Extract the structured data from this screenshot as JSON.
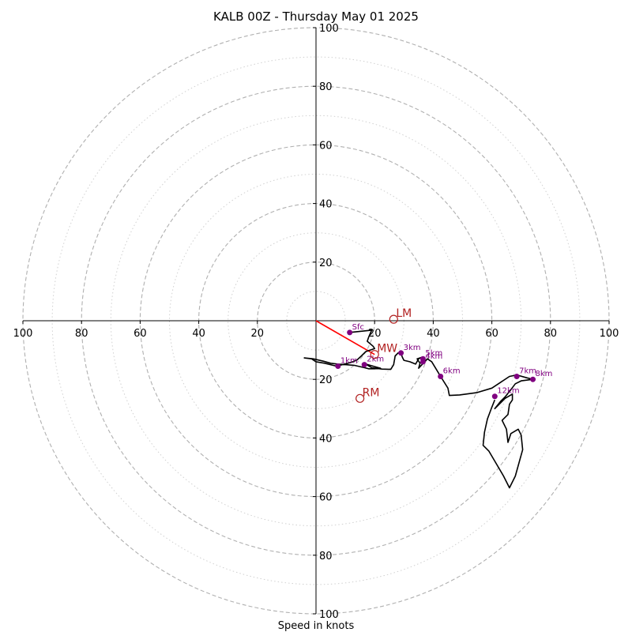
{
  "chart_data": {
    "type": "hodograph",
    "title": "KALB 00Z - Thursday May 01 2025",
    "xlabel": "Speed in knots",
    "range": [
      -100,
      100
    ],
    "major_rings": [
      20,
      40,
      60,
      80,
      100
    ],
    "minor_rings": [
      10,
      30,
      50,
      70,
      90
    ],
    "tick_labels": {
      "x": [
        "100",
        "80",
        "60",
        "40",
        "20",
        "20",
        "40",
        "60",
        "80",
        "100"
      ],
      "y": [
        "100",
        "80",
        "60",
        "40",
        "20",
        "20",
        "40",
        "60",
        "80",
        "100"
      ]
    },
    "trace": [
      [
        11.5,
        -4.0
      ],
      [
        19,
        -3.2
      ],
      [
        18,
        -5.5
      ],
      [
        17.5,
        -7.0
      ],
      [
        19.5,
        -8.7
      ],
      [
        20,
        -9.5
      ],
      [
        17,
        -10.5
      ],
      [
        15.5,
        -12.0
      ],
      [
        14,
        -13.4
      ],
      [
        12,
        -14.2
      ],
      [
        7,
        -15.5
      ],
      [
        3,
        -14.5
      ],
      [
        0,
        -14.0
      ],
      [
        -1.5,
        -13.0
      ],
      [
        -4,
        -12.7
      ],
      [
        -1,
        -13.0
      ],
      [
        2.5,
        -13.8
      ],
      [
        5,
        -14.5
      ],
      [
        7.5,
        -14.8
      ],
      [
        10,
        -15.0
      ],
      [
        13,
        -15.2
      ],
      [
        16.5,
        -16.0
      ],
      [
        18,
        -16.4
      ],
      [
        20,
        -16.4
      ],
      [
        22,
        -16.2
      ],
      [
        17,
        -14.8
      ],
      [
        16.5,
        -14.5
      ],
      [
        19,
        -16.0
      ],
      [
        22.5,
        -16.5
      ],
      [
        25.5,
        -16.6
      ],
      [
        26.5,
        -15.0
      ],
      [
        27,
        -12.0
      ],
      [
        28,
        -11.0
      ],
      [
        29,
        -11.2
      ],
      [
        29.5,
        -12.5
      ],
      [
        30,
        -13.5
      ],
      [
        32,
        -14.0
      ],
      [
        34,
        -14.8
      ],
      [
        35,
        -13.0
      ],
      [
        36,
        -12.5
      ],
      [
        34.5,
        -13.0
      ],
      [
        35.5,
        -14.5
      ],
      [
        35,
        -16.2
      ],
      [
        36.5,
        -14.6
      ],
      [
        38,
        -13.0
      ],
      [
        39.5,
        -14.0
      ],
      [
        41,
        -16.5
      ],
      [
        42.5,
        -19.0
      ],
      [
        45,
        -23.0
      ],
      [
        45.5,
        -25.5
      ],
      [
        49,
        -25.3
      ],
      [
        55,
        -24.5
      ],
      [
        60,
        -23.0
      ],
      [
        63,
        -21.0
      ],
      [
        66,
        -19.0
      ],
      [
        68.5,
        -18.5
      ],
      [
        72,
        -19.5
      ],
      [
        74,
        -20.0
      ],
      [
        70,
        -20.5
      ],
      [
        68,
        -21.5
      ],
      [
        66.5,
        -23.5
      ],
      [
        64.5,
        -26.0
      ],
      [
        63,
        -27.5
      ],
      [
        61,
        -30.0
      ],
      [
        62.5,
        -28.5
      ],
      [
        64.5,
        -26.5
      ],
      [
        67,
        -25.0
      ],
      [
        67,
        -27.0
      ],
      [
        66,
        -28.5
      ],
      [
        65.5,
        -32.0
      ],
      [
        63.5,
        -34.0
      ],
      [
        65,
        -37.0
      ],
      [
        65.5,
        -41.5
      ],
      [
        66.5,
        -38.5
      ],
      [
        69,
        -37.0
      ],
      [
        70,
        -39.0
      ],
      [
        70.5,
        -44.0
      ],
      [
        68,
        -53.0
      ],
      [
        66,
        -57.0
      ],
      [
        64,
        -53.0
      ],
      [
        59,
        -44.5
      ],
      [
        57,
        -42.5
      ],
      [
        57.5,
        -38.0
      ],
      [
        58.5,
        -33.5
      ],
      [
        60,
        -29.5
      ],
      [
        61,
        -27.0
      ]
    ],
    "height_labels": [
      {
        "label": "Sfc",
        "u": 11.5,
        "v": -4.0
      },
      {
        "label": "1km",
        "u": 7.5,
        "v": -15.5
      },
      {
        "label": "2km",
        "u": 16.5,
        "v": -15.0
      },
      {
        "label": "3km",
        "u": 29,
        "v": -11.0
      },
      {
        "label": "4km",
        "u": 36.5,
        "v": -14.0
      },
      {
        "label": "5km",
        "u": 36.5,
        "v": -13.0
      },
      {
        "label": "6km",
        "u": 42.5,
        "v": -19.0
      },
      {
        "label": "7km",
        "u": 68.5,
        "v": -19.0
      },
      {
        "label": "8km",
        "u": 74,
        "v": -20.0
      },
      {
        "label": "12km",
        "u": 61,
        "v": -25.8
      }
    ],
    "motion_markers": [
      {
        "label": "LM",
        "u": 26.5,
        "v": 0.5
      },
      {
        "label": "MW",
        "u": 20,
        "v": -11.5
      },
      {
        "label": "RM",
        "u": 15,
        "v": -26.5
      }
    ],
    "shear_vector": {
      "from": [
        0,
        0
      ],
      "to": [
        20,
        -11.5
      ]
    },
    "colors": {
      "trace": "#000000",
      "height_points": "#800080",
      "motion_markers": "#b22222",
      "shear_vector": "#ff0000",
      "rings": "#b0b0b0"
    }
  }
}
